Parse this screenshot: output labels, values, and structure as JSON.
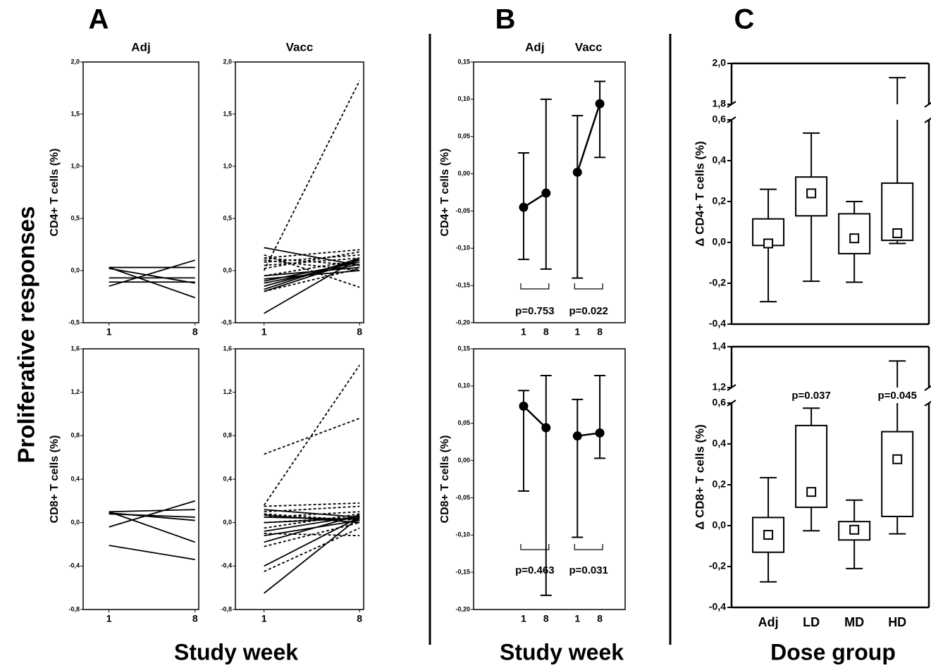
{
  "labels": {
    "y_title": "Proliferative responses",
    "panels": [
      {
        "letter": "A",
        "x_title": "Study week"
      },
      {
        "letter": "B",
        "x_title": "Study week"
      },
      {
        "letter": "C",
        "x_title": "Dose group"
      }
    ]
  },
  "chart_data": [
    {
      "type": "line",
      "title": "Adj",
      "y_label": "CD4+ T cells (%)",
      "x": [
        1,
        8
      ],
      "xlim": [
        -1.1,
        8.3
      ],
      "xticks": [
        1,
        8
      ],
      "ylim": [
        -0.5,
        2
      ],
      "yticks": [
        {
          "value": -0.5,
          "label": "-0,5"
        },
        {
          "value": 0,
          "label": "0,0"
        },
        {
          "value": 0.5,
          "label": "0,5"
        },
        {
          "value": 1,
          "label": "1,0"
        },
        {
          "value": 1.5,
          "label": "1,5"
        },
        {
          "value": 2,
          "label": "2,0"
        }
      ],
      "color": "#000000",
      "series": [
        {
          "values": [
            0.03,
            0.03
          ],
          "dashed": false
        },
        {
          "values": [
            0.03,
            -0.26
          ],
          "dashed": false
        },
        {
          "values": [
            -0.15,
            0.1
          ],
          "dashed": false
        },
        {
          "values": [
            -0.07,
            -0.07
          ],
          "dashed": false
        },
        {
          "values": [
            -0.11,
            -0.11
          ],
          "dashed": false
        },
        {
          "values": [
            0.02,
            -0.12
          ],
          "dashed": false
        }
      ]
    },
    {
      "type": "line",
      "title": "Vacc",
      "x": [
        1,
        8
      ],
      "xlim": [
        -1.1,
        8.3
      ],
      "xticks": [
        1,
        8
      ],
      "ylim": [
        -0.5,
        2
      ],
      "yticks": [
        {
          "value": -0.5,
          "label": "-0,5"
        },
        {
          "value": 0,
          "label": "0,0"
        },
        {
          "value": 0.5,
          "label": "0,5"
        },
        {
          "value": 1,
          "label": "1,0"
        },
        {
          "value": 1.5,
          "label": "1,5"
        },
        {
          "value": 2,
          "label": "2,0"
        }
      ],
      "color": "#000000",
      "series": [
        {
          "values": [
            0.0,
            1.82
          ],
          "dashed": true
        },
        {
          "values": [
            0.12,
            0.2
          ],
          "dashed": true
        },
        {
          "values": [
            0.15,
            -0.16
          ],
          "dashed": true
        },
        {
          "values": [
            0.08,
            0.15
          ],
          "dashed": true
        },
        {
          "values": [
            0.05,
            0.12
          ],
          "dashed": true
        },
        {
          "values": [
            0.1,
            0.0
          ],
          "dashed": true
        },
        {
          "values": [
            0.02,
            0.18
          ],
          "dashed": true
        },
        {
          "values": [
            -0.05,
            0.1
          ],
          "dashed": true
        },
        {
          "values": [
            0.12,
            0.05
          ],
          "dashed": true
        },
        {
          "values": [
            -0.2,
            0.02
          ],
          "dashed": true
        },
        {
          "values": [
            0.22,
            0.05
          ],
          "dashed": false
        },
        {
          "values": [
            -0.41,
            0.12
          ],
          "dashed": false
        },
        {
          "values": [
            -0.15,
            0.1
          ],
          "dashed": false
        },
        {
          "values": [
            -0.1,
            0.08
          ],
          "dashed": false
        },
        {
          "values": [
            -0.05,
            0.03
          ],
          "dashed": false
        },
        {
          "values": [
            -0.12,
            0.06
          ],
          "dashed": false
        },
        {
          "values": [
            -0.2,
            0.1
          ],
          "dashed": false
        },
        {
          "values": [
            -0.08,
            0.0
          ],
          "dashed": false
        },
        {
          "values": [
            -0.18,
            0.12
          ],
          "dashed": false
        }
      ]
    },
    {
      "type": "line",
      "y_label": "CD8+ T cells (%)",
      "x": [
        1,
        8
      ],
      "xlim": [
        -1.1,
        8.3
      ],
      "xticks": [
        1,
        8
      ],
      "ylim": [
        -0.8,
        1.6
      ],
      "yticks": [
        {
          "value": -0.8,
          "label": "-0,8"
        },
        {
          "value": -0.4,
          "label": "-0,4"
        },
        {
          "value": 0,
          "label": "0,0"
        },
        {
          "value": 0.4,
          "label": "0,4"
        },
        {
          "value": 0.8,
          "label": "0,8"
        },
        {
          "value": 1.2,
          "label": "1,2"
        },
        {
          "value": 1.6,
          "label": "1,6"
        }
      ],
      "color": "#000000",
      "series": [
        {
          "values": [
            0.1,
            0.12
          ],
          "dashed": false
        },
        {
          "values": [
            0.1,
            -0.18
          ],
          "dashed": false
        },
        {
          "values": [
            -0.04,
            0.2
          ],
          "dashed": false
        },
        {
          "values": [
            0.08,
            0.05
          ],
          "dashed": false
        },
        {
          "values": [
            0.09,
            0.02
          ],
          "dashed": false
        },
        {
          "values": [
            -0.21,
            -0.34
          ],
          "dashed": false
        }
      ]
    },
    {
      "type": "line",
      "x": [
        1,
        8
      ],
      "xlim": [
        -1.1,
        8.3
      ],
      "xticks": [
        1,
        8
      ],
      "ylim": [
        -0.8,
        1.6
      ],
      "yticks": [
        {
          "value": -0.8,
          "label": "-0,8"
        },
        {
          "value": -0.4,
          "label": "-0,4"
        },
        {
          "value": 0,
          "label": "0,0"
        },
        {
          "value": 0.4,
          "label": "0,4"
        },
        {
          "value": 0.8,
          "label": "0,8"
        },
        {
          "value": 1.2,
          "label": "1,2"
        },
        {
          "value": 1.6,
          "label": "1,6"
        }
      ],
      "color": "#000000",
      "series": [
        {
          "values": [
            0.63,
            0.96
          ],
          "dashed": true
        },
        {
          "values": [
            0.16,
            1.45
          ],
          "dashed": true
        },
        {
          "values": [
            0.15,
            0.18
          ],
          "dashed": true
        },
        {
          "values": [
            0.1,
            0.15
          ],
          "dashed": true
        },
        {
          "values": [
            0.05,
            0.1
          ],
          "dashed": true
        },
        {
          "values": [
            0.0,
            0.05
          ],
          "dashed": true
        },
        {
          "values": [
            -0.05,
            0.08
          ],
          "dashed": true
        },
        {
          "values": [
            -0.45,
            -0.05
          ],
          "dashed": true
        },
        {
          "values": [
            -0.1,
            -0.12
          ],
          "dashed": true
        },
        {
          "values": [
            0.08,
            0.02
          ],
          "dashed": true
        },
        {
          "values": [
            -0.22,
            0.0
          ],
          "dashed": true
        },
        {
          "values": [
            -0.65,
            0.05
          ],
          "dashed": false
        },
        {
          "values": [
            -0.4,
            0.05
          ],
          "dashed": false
        },
        {
          "values": [
            0.12,
            0.05
          ],
          "dashed": false
        },
        {
          "values": [
            0.05,
            0.03
          ],
          "dashed": false
        },
        {
          "values": [
            0.0,
            0.04
          ],
          "dashed": false
        },
        {
          "values": [
            -0.08,
            0.06
          ],
          "dashed": false
        },
        {
          "values": [
            -0.12,
            0.02
          ],
          "dashed": false
        },
        {
          "values": [
            -0.18,
            0.07
          ],
          "dashed": false
        },
        {
          "values": [
            0.07,
            0.0
          ],
          "dashed": false
        }
      ]
    },
    {
      "type": "errorbar",
      "y_label": "CD4+ T cells (%)",
      "ylim": [
        -0.2,
        0.15
      ],
      "yticks": [
        {
          "value": -0.2,
          "label": "-0,20"
        },
        {
          "value": -0.15,
          "label": "-0,15"
        },
        {
          "value": -0.1,
          "label": "-0,10"
        },
        {
          "value": -0.05,
          "label": "-0,05"
        },
        {
          "value": 0,
          "label": "0,00"
        },
        {
          "value": 0.05,
          "label": "0,05"
        },
        {
          "value": 0.1,
          "label": "0,10"
        },
        {
          "value": 0.15,
          "label": "0,15"
        }
      ],
      "color": "#000000",
      "groups": [
        {
          "name": "Adj",
          "categories": [
            "1",
            "8"
          ],
          "values": [
            -0.045,
            -0.026
          ],
          "lower": [
            -0.115,
            -0.128
          ],
          "upper": [
            0.028,
            0.1
          ],
          "p_label": "p=0.753"
        },
        {
          "name": "Vacc",
          "categories": [
            "1",
            "8"
          ],
          "values": [
            0.002,
            0.094
          ],
          "lower": [
            -0.14,
            0.022
          ],
          "upper": [
            0.078,
            0.124
          ],
          "p_label": "p=0.022"
        }
      ]
    },
    {
      "type": "errorbar",
      "y_label": "CD8+ T cells (%)",
      "ylim": [
        -0.2,
        0.15
      ],
      "yticks": [
        {
          "value": -0.2,
          "label": "-0,20"
        },
        {
          "value": -0.15,
          "label": "-0,15"
        },
        {
          "value": -0.1,
          "label": "-0,10"
        },
        {
          "value": -0.05,
          "label": "-0,05"
        },
        {
          "value": 0,
          "label": "0,00"
        },
        {
          "value": 0.05,
          "label": "0,05"
        },
        {
          "value": 0.1,
          "label": "0,10"
        },
        {
          "value": 0.15,
          "label": "0,15"
        }
      ],
      "color": "#000000",
      "groups": [
        {
          "categories": [
            "1",
            "8"
          ],
          "values": [
            0.073,
            0.044
          ],
          "lower": [
            -0.041,
            -0.181
          ],
          "upper": [
            0.094,
            0.114
          ],
          "p_label": "p=0.463"
        },
        {
          "categories": [
            "1",
            "8"
          ],
          "values": [
            0.033,
            0.037
          ],
          "lower": [
            -0.103,
            0.003
          ],
          "upper": [
            0.082,
            0.114
          ],
          "p_label": "p=0.031"
        }
      ]
    },
    {
      "type": "box",
      "y_label": "Δ CD4+ T cells (%)",
      "categories": [
        null,
        null,
        null,
        null
      ],
      "ylim": [
        -0.4,
        2.0
      ],
      "ybreak": [
        0.6,
        1.8
      ],
      "yticks": [
        {
          "value": -0.4,
          "label": "-0,4"
        },
        {
          "value": -0.2,
          "label": "-0,2"
        },
        {
          "value": 0,
          "label": "0,0"
        },
        {
          "value": 0.2,
          "label": "0,2"
        },
        {
          "value": 0.4,
          "label": "0,4"
        },
        {
          "value": 0.6,
          "label": "0,6"
        },
        {
          "value": 1.8,
          "label": "1,8"
        },
        {
          "value": 2.0,
          "label": "2,0"
        }
      ],
      "color": "#000000",
      "min": [
        -0.29,
        -0.19,
        -0.195,
        -0.005
      ],
      "q1": [
        -0.015,
        0.13,
        -0.055,
        0.01
      ],
      "q3": [
        0.115,
        0.32,
        0.14,
        0.29
      ],
      "max": [
        0.26,
        0.535,
        0.2,
        1.93
      ],
      "mean": [
        -0.005,
        0.24,
        0.02,
        0.045
      ]
    },
    {
      "type": "box",
      "y_label": "Δ CD8+ T cells (%)",
      "categories": [
        "Adj",
        "LD",
        "MD",
        "HD"
      ],
      "ylim": [
        -0.4,
        1.4
      ],
      "ybreak": [
        0.6,
        1.2
      ],
      "yticks": [
        {
          "value": -0.4,
          "label": "-0,4"
        },
        {
          "value": -0.2,
          "label": "-0,2"
        },
        {
          "value": 0,
          "label": "0,0"
        },
        {
          "value": 0.2,
          "label": "0,2"
        },
        {
          "value": 0.4,
          "label": "0,4"
        },
        {
          "value": 0.6,
          "label": "0,6"
        },
        {
          "value": 1.2,
          "label": "1,2"
        },
        {
          "value": 1.4,
          "label": "1,4"
        }
      ],
      "color": "#000000",
      "min": [
        -0.275,
        -0.025,
        -0.21,
        -0.04
      ],
      "q1": [
        -0.13,
        0.09,
        -0.07,
        0.045
      ],
      "q3": [
        0.04,
        0.49,
        0.02,
        0.46
      ],
      "max": [
        0.235,
        0.575,
        0.125,
        1.33
      ],
      "mean": [
        -0.045,
        0.165,
        -0.02,
        0.325
      ],
      "p_labels": [
        null,
        "p=0.037",
        null,
        "p=0.045"
      ]
    }
  ]
}
